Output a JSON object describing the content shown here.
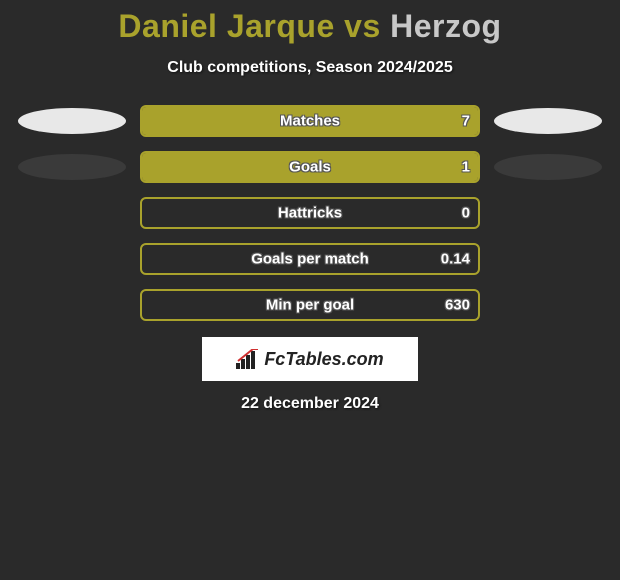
{
  "title": {
    "player1": "Daniel Jarque",
    "vs": " vs ",
    "player2": "Herzog",
    "player1_color": "#a9a22c",
    "player2_color": "#c8c8c8"
  },
  "subtitle": "Club competitions, Season 2024/2025",
  "accent_color": "#a9a22c",
  "accent_border": "#8f8a1e",
  "bar_bg_color": "#2a2a2a",
  "rows": [
    {
      "label": "Matches",
      "value": "7",
      "fill_pct": 100,
      "left_ellipse": "light",
      "right_ellipse": "light"
    },
    {
      "label": "Goals",
      "value": "1",
      "fill_pct": 100,
      "left_ellipse": "dark",
      "right_ellipse": "dark"
    },
    {
      "label": "Hattricks",
      "value": "0",
      "fill_pct": 0,
      "left_ellipse": "none",
      "right_ellipse": "none"
    },
    {
      "label": "Goals per match",
      "value": "0.14",
      "fill_pct": 0,
      "left_ellipse": "none",
      "right_ellipse": "none"
    },
    {
      "label": "Min per goal",
      "value": "630",
      "fill_pct": 0,
      "left_ellipse": "none",
      "right_ellipse": "none"
    }
  ],
  "logo_text": "FcTables.com",
  "date": "22 december 2024"
}
